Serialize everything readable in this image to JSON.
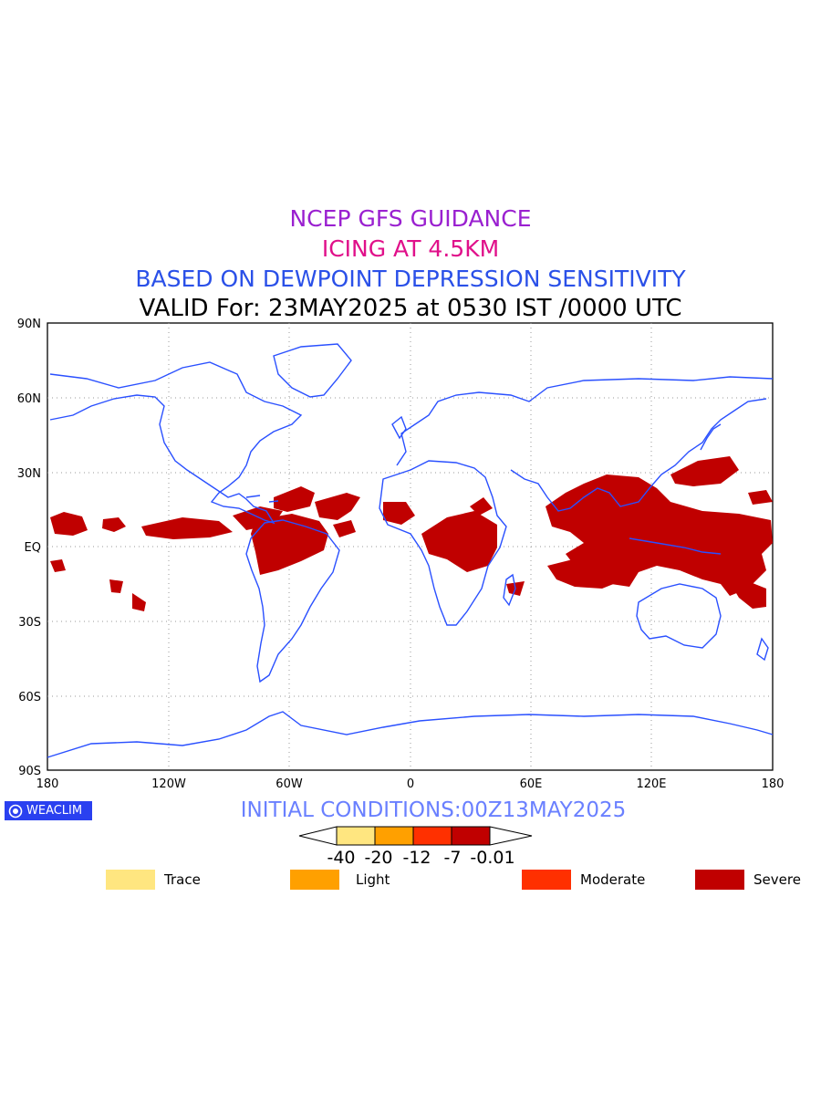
{
  "titles": {
    "line1": "NCEP GFS GUIDANCE",
    "line2": "ICING AT 4.5KM",
    "line3": "BASED ON DEWPOINT DEPRESSION SENSITIVITY",
    "line4": "VALID For: 23MAY2025 at 0530 IST /0000 UTC"
  },
  "colors": {
    "line1": "#9a20d0",
    "line2": "#e0108a",
    "line3": "#2a50e8",
    "coastline": "#2a50ff",
    "init": "#6a80ff",
    "badge_bg": "#2a40f0",
    "severe": "#c00000"
  },
  "map": {
    "lat_labels": [
      "90N",
      "60N",
      "30N",
      "EQ",
      "30S",
      "60S",
      "90S"
    ],
    "lon_labels": [
      "180",
      "120W",
      "60W",
      "0",
      "60E",
      "120E",
      "180"
    ]
  },
  "badge": {
    "text": "WEACLIM"
  },
  "initial_conditions": "INITIAL CONDITIONS:00Z13MAY2025",
  "colorbar": {
    "ticks": [
      "-40",
      "-20",
      "-12",
      "-7",
      "-0.01"
    ],
    "colors": [
      "#ffe680",
      "#ffa000",
      "#ff3000",
      "#c00000"
    ]
  },
  "legend": [
    {
      "label": "Trace",
      "color": "#ffe680"
    },
    {
      "label": "Light",
      "color": "#ffa000"
    },
    {
      "label": "Moderate",
      "color": "#ff3000"
    },
    {
      "label": "Severe",
      "color": "#c00000"
    }
  ]
}
